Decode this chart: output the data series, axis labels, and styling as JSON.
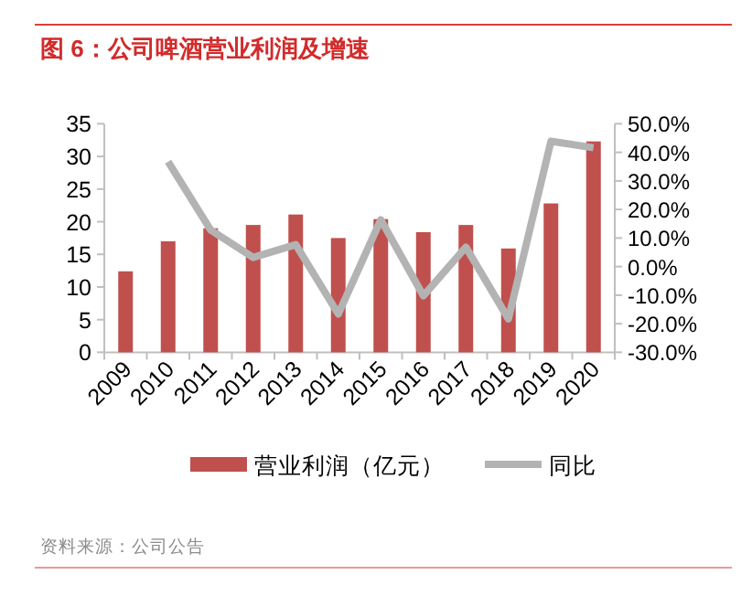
{
  "chart_data": {
    "type": "bar",
    "title": "图 6：公司啤酒营业利润及增速",
    "categories": [
      "2009",
      "2010",
      "2011",
      "2012",
      "2013",
      "2014",
      "2015",
      "2016",
      "2017",
      "2018",
      "2019",
      "2020"
    ],
    "series": [
      {
        "name": "营业利润（亿元）",
        "color": "#c0504d",
        "values": [
          12.4,
          17.0,
          19.0,
          19.5,
          21.1,
          17.5,
          20.4,
          18.4,
          19.5,
          15.9,
          22.8,
          32.3
        ]
      },
      {
        "name": "同比",
        "type": "line",
        "axis": "y2",
        "color": "#b3b3b3",
        "values": [
          null,
          36.7,
          12.8,
          3.2,
          7.7,
          -16.6,
          16.4,
          -10.2,
          6.8,
          -18.3,
          43.9,
          41.6
        ]
      }
    ],
    "ylim": [
      0,
      35
    ],
    "yticks": [
      0,
      5,
      10,
      15,
      20,
      25,
      30,
      35
    ],
    "y2lim": [
      -30,
      50
    ],
    "y2ticks": [
      {
        "value": 50,
        "label": "50.0%"
      },
      {
        "value": 40,
        "label": "40.0%"
      },
      {
        "value": 30,
        "label": "30.0%"
      },
      {
        "value": 20,
        "label": "20.0%"
      },
      {
        "value": 10,
        "label": "10.0%"
      },
      {
        "value": 0,
        "label": "0.0%"
      },
      {
        "value": -10,
        "label": "-10.0%"
      },
      {
        "value": -20,
        "label": "-20.0%"
      },
      {
        "value": -30,
        "label": "-30.0%"
      }
    ],
    "legend": "bottom",
    "annotations": [
      "资料来源：公司公告"
    ]
  }
}
